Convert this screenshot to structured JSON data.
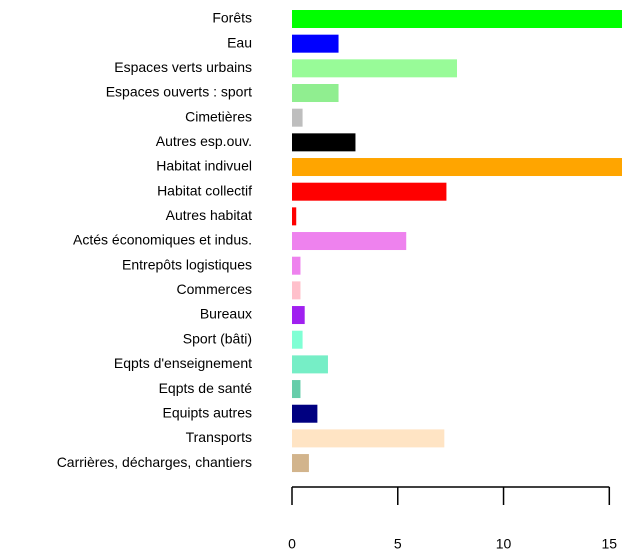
{
  "chart_data": {
    "type": "barh",
    "categories": [
      "Forêts",
      "Eau",
      "Espaces verts urbains",
      "Espaces ouverts : sport",
      "Cimetières",
      "Autres esp.ouv.",
      "Habitat indivuel",
      "Habitat collectif",
      "Autres habitat",
      "Actés économiques et indus.",
      "Entrepôts logistiques",
      "Commerces",
      "Bureaux",
      "Sport (bâti)",
      "Eqpts d'enseignement",
      "Eqpts de santé",
      "Equipts autres",
      "Transports",
      "Carrières, décharges, chantiers"
    ],
    "values": [
      15.6,
      2.2,
      7.8,
      2.2,
      0.5,
      3.0,
      15.6,
      7.3,
      0.2,
      5.4,
      0.4,
      0.4,
      0.6,
      0.5,
      1.7,
      0.4,
      1.2,
      7.2,
      0.8
    ],
    "colors": [
      "#00ff00",
      "#0000ff",
      "#98fb98",
      "#90ee90",
      "#bebebe",
      "#000000",
      "#ffa500",
      "#ff0000",
      "#ff0000",
      "#ee82ee",
      "#ee82ee",
      "#ffc0cb",
      "#a020f0",
      "#7fffd4",
      "#76eec6",
      "#66cdaa",
      "#000080",
      "#ffe4c4",
      "#d2b48c"
    ],
    "xlim": [
      0,
      15.6
    ],
    "xticks": [
      0,
      5,
      10,
      15
    ]
  }
}
